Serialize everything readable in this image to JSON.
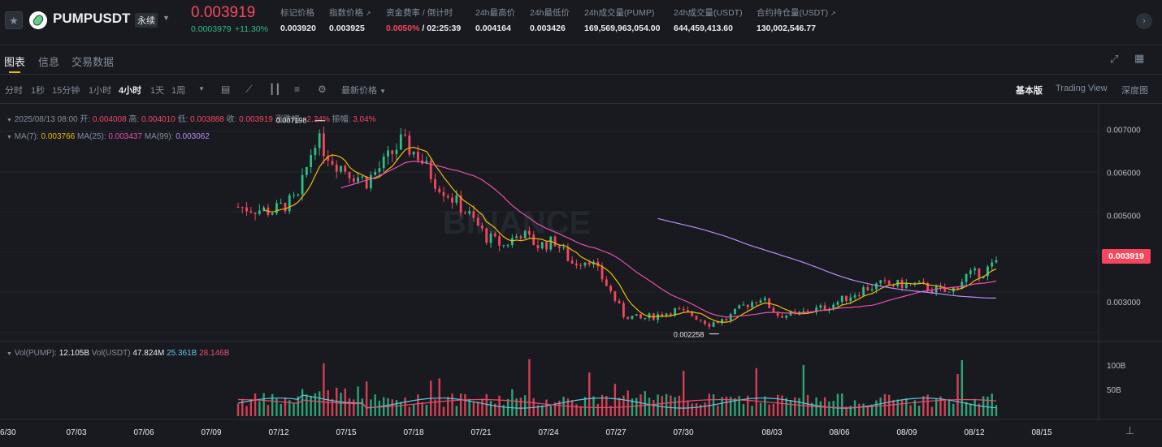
{
  "header": {
    "symbol": "PUMPUSDT",
    "contract_type": "永续",
    "last_price": "0.003919",
    "change_abs": "0.0003979",
    "change_pct": "+11.30%",
    "stats": [
      {
        "label": "标记价格",
        "value": "0.003920"
      },
      {
        "label": "指数价格",
        "value": "0.003925"
      },
      {
        "label": "资金费率 / 倒计时",
        "value": "0.0050%",
        "value2": "/ 02:25:39"
      },
      {
        "label": "24h最高价",
        "value": "0.004164"
      },
      {
        "label": "24h最低价",
        "value": "0.003426"
      },
      {
        "label": "24h成交量(PUMP)",
        "value": "169,569,963,054.00"
      },
      {
        "label": "24h成交量(USDT)",
        "value": "644,459,413.60"
      },
      {
        "label": "合约持仓量(USDT)",
        "value": "130,002,546.77"
      }
    ]
  },
  "tabs": [
    "图表",
    "信息",
    "交易数据"
  ],
  "toolbar": {
    "intervals": [
      "分时",
      "1秒",
      "15分钟",
      "1小时",
      "4小时",
      "1天",
      "1周"
    ],
    "selected_interval": "4小时",
    "price_type": "最新价格",
    "views": [
      "基本版",
      "Trading View",
      "深度图"
    ],
    "selected_view": "基本版"
  },
  "ohlc": {
    "time": "2025/08/13 08:00",
    "open_label": "开:",
    "open": "0.004008",
    "high_label": "高:",
    "high": "0.004010",
    "low_label": "低:",
    "low": "0.003888",
    "close_label": "收:",
    "close": "0.003919",
    "chg_label": "涨跌幅:",
    "chg": "-2.24%",
    "amp_label": "振幅:",
    "amp": "3.04%"
  },
  "ma": [
    {
      "label": "MA(7):",
      "value": "0.003766",
      "color": "#f0b90b"
    },
    {
      "label": "MA(25):",
      "value": "0.003437",
      "color": "#e84fae"
    },
    {
      "label": "MA(99):",
      "value": "0.003062",
      "color": "#b88cf5"
    }
  ],
  "vol": [
    {
      "label": "Vol(PUMP):",
      "value": "12.105B",
      "color": "#eaecef"
    },
    {
      "label": "Vol(USDT)",
      "value": "47.824M",
      "color": "#eaecef"
    },
    {
      "label": "",
      "value": "25.361B",
      "color": "#62c5dc"
    },
    {
      "label": "",
      "value": "28.146B",
      "color": "#e84f6f"
    }
  ],
  "watermark": "BINANCE",
  "price_axis": [
    "0.007000",
    "0.006000",
    "0.005000",
    "0.003000"
  ],
  "vol_axis": [
    "100B",
    "50B"
  ],
  "current_price_tag": "0.003919",
  "high_marker": "0.007198",
  "low_marker": "0.002258",
  "date_axis": [
    "06/30",
    "07/03",
    "07/06",
    "07/09",
    "07/12",
    "07/15",
    "07/18",
    "07/21",
    "07/24",
    "07/27",
    "07/30",
    "08/03",
    "08/06",
    "08/09",
    "08/12",
    "08/15"
  ],
  "colors": {
    "up": "#2ebd85",
    "down": "#f6465d",
    "accent": "#f0b90b"
  },
  "chart_data": {
    "type": "candlestick",
    "interval": "4h",
    "ylim": [
      0.0021,
      0.0074
    ],
    "close_path": [
      [
        0,
        0.0052
      ],
      [
        8,
        0.0051
      ],
      [
        14,
        0.0054
      ],
      [
        18,
        0.0068
      ],
      [
        22,
        0.0063
      ],
      [
        26,
        0.006
      ],
      [
        30,
        0.0058
      ],
      [
        34,
        0.0062
      ],
      [
        38,
        0.0067
      ],
      [
        42,
        0.0064
      ],
      [
        46,
        0.0058
      ],
      [
        50,
        0.0054
      ],
      [
        54,
        0.005
      ],
      [
        58,
        0.0045
      ],
      [
        62,
        0.0043
      ],
      [
        66,
        0.0046
      ],
      [
        70,
        0.0043
      ],
      [
        74,
        0.0044
      ],
      [
        78,
        0.0039
      ],
      [
        82,
        0.004
      ],
      [
        86,
        0.0034
      ],
      [
        90,
        0.0027
      ],
      [
        94,
        0.0026
      ],
      [
        98,
        0.0027
      ],
      [
        102,
        0.0028
      ],
      [
        106,
        0.0027
      ],
      [
        110,
        0.0025
      ],
      [
        114,
        0.0026
      ],
      [
        118,
        0.0029
      ],
      [
        122,
        0.0031
      ],
      [
        126,
        0.0027
      ],
      [
        130,
        0.0027
      ],
      [
        134,
        0.0028
      ],
      [
        138,
        0.0029
      ],
      [
        142,
        0.0031
      ],
      [
        146,
        0.0033
      ],
      [
        150,
        0.0034
      ],
      [
        154,
        0.0034
      ],
      [
        158,
        0.0034
      ],
      [
        162,
        0.0033
      ],
      [
        166,
        0.0032
      ],
      [
        170,
        0.0036
      ],
      [
        174,
        0.0037
      ],
      [
        177,
        0.0039
      ]
    ],
    "n_candles": 178
  }
}
